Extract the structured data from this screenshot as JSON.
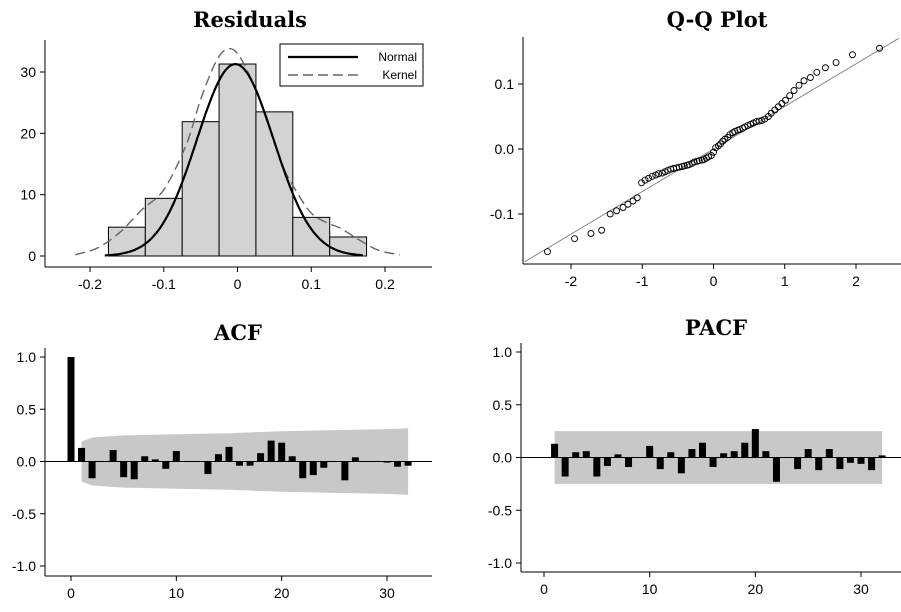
{
  "colors": {
    "bar_fill": "#d3d3d3",
    "bar_stroke": "#000000",
    "normal_line": "#000000",
    "kernel_line": "#666666",
    "conf_band": "#c8c8c8",
    "acf_bar": "#000000",
    "qq_point": "#000000",
    "qq_line": "#888888"
  },
  "chart_data": [
    {
      "id": "residuals",
      "type": "histogram",
      "title": "Residuals",
      "xlim": [
        -0.25,
        0.25
      ],
      "ylim": [
        -2,
        35
      ],
      "xticks": [
        -0.2,
        -0.1,
        0,
        0.1,
        0.2
      ],
      "xtick_labels": [
        "-0.2",
        "-0.1",
        "0",
        "0.1",
        "0.2"
      ],
      "yticks": [
        0,
        10,
        20,
        30
      ],
      "ytick_labels": [
        "0",
        "10",
        "20",
        "30"
      ],
      "bins": [
        {
          "from": -0.175,
          "to": -0.125,
          "value": 4.7
        },
        {
          "from": -0.125,
          "to": -0.075,
          "value": 9.4
        },
        {
          "from": -0.075,
          "to": -0.025,
          "value": 21.9
        },
        {
          "from": -0.025,
          "to": 0.025,
          "value": 31.3
        },
        {
          "from": 0.025,
          "to": 0.075,
          "value": 23.5
        },
        {
          "from": 0.075,
          "to": 0.125,
          "value": 6.3
        },
        {
          "from": 0.125,
          "to": 0.175,
          "value": 3.1
        }
      ],
      "normal": {
        "mean": -0.003,
        "sd": 0.0127,
        "peak": 31.3,
        "range": [
          -0.18,
          0.17
        ]
      },
      "kernel": {
        "x": [
          -0.22,
          -0.19,
          -0.16,
          -0.13,
          -0.1,
          -0.07,
          -0.05,
          -0.03,
          -0.015,
          0.0,
          0.02,
          0.04,
          0.06,
          0.08,
          0.1,
          0.12,
          0.14,
          0.16,
          0.19,
          0.22
        ],
        "y": [
          0.2,
          1.3,
          3.8,
          7.5,
          10.8,
          18.0,
          25.5,
          31.5,
          33.7,
          33.0,
          28.5,
          22.0,
          15.0,
          10.5,
          7.0,
          5.5,
          4.5,
          3.0,
          1.0,
          0.2
        ]
      },
      "legend": {
        "position": "top-right",
        "entries": [
          "Normal",
          "Kernel"
        ]
      }
    },
    {
      "id": "qqplot",
      "type": "scatter",
      "title": "Q-Q Plot",
      "xlim": [
        -2.7,
        2.6
      ],
      "ylim": [
        -0.17,
        0.17
      ],
      "xticks": [
        -2,
        -1,
        0,
        1,
        2
      ],
      "xtick_labels": [
        "-2",
        "-1",
        "0",
        "1",
        "2"
      ],
      "yticks": [
        -0.1,
        0,
        0.1
      ],
      "ytick_labels": [
        "-0.1",
        "0.0",
        "0.1"
      ],
      "reference_line": {
        "intercept": 0.0,
        "slope": 0.0655
      },
      "theoretical": [
        -2.33,
        -1.95,
        -1.72,
        -1.57,
        -1.45,
        -1.36,
        -1.27,
        -1.2,
        -1.13,
        -1.07,
        -1.01,
        -0.96,
        -0.91,
        -0.86,
        -0.81,
        -0.77,
        -0.72,
        -0.68,
        -0.64,
        -0.6,
        -0.56,
        -0.52,
        -0.48,
        -0.44,
        -0.41,
        -0.37,
        -0.34,
        -0.3,
        -0.27,
        -0.23,
        -0.2,
        -0.16,
        -0.13,
        -0.1,
        -0.07,
        -0.03,
        0.0,
        0.03,
        0.07,
        0.1,
        0.13,
        0.16,
        0.2,
        0.23,
        0.27,
        0.3,
        0.34,
        0.37,
        0.41,
        0.44,
        0.48,
        0.52,
        0.56,
        0.6,
        0.64,
        0.68,
        0.72,
        0.77,
        0.81,
        0.86,
        0.91,
        0.96,
        1.01,
        1.07,
        1.13,
        1.2,
        1.27,
        1.36,
        1.45,
        1.57,
        1.72,
        1.95,
        2.33
      ],
      "sample": [
        -0.158,
        -0.138,
        -0.13,
        -0.125,
        -0.1,
        -0.095,
        -0.09,
        -0.085,
        -0.08,
        -0.075,
        -0.052,
        -0.048,
        -0.045,
        -0.042,
        -0.04,
        -0.038,
        -0.037,
        -0.035,
        -0.033,
        -0.031,
        -0.03,
        -0.029,
        -0.028,
        -0.027,
        -0.026,
        -0.025,
        -0.024,
        -0.022,
        -0.02,
        -0.019,
        -0.018,
        -0.017,
        -0.016,
        -0.014,
        -0.012,
        -0.01,
        -0.005,
        0.002,
        0.005,
        0.008,
        0.012,
        0.015,
        0.018,
        0.022,
        0.025,
        0.027,
        0.029,
        0.03,
        0.032,
        0.034,
        0.036,
        0.038,
        0.04,
        0.042,
        0.043,
        0.044,
        0.046,
        0.05,
        0.055,
        0.06,
        0.065,
        0.07,
        0.075,
        0.082,
        0.09,
        0.098,
        0.105,
        0.11,
        0.118,
        0.125,
        0.133,
        0.145,
        0.155
      ]
    },
    {
      "id": "acf",
      "type": "bar",
      "title": "ACF",
      "xlim": [
        -2.5,
        34
      ],
      "ylim": [
        -1.1,
        1.1
      ],
      "xticks": [
        0,
        10,
        20,
        30
      ],
      "xtick_labels": [
        "0",
        "10",
        "20",
        "30"
      ],
      "yticks": [
        -1,
        -0.5,
        0,
        0.5,
        1
      ],
      "ytick_labels": [
        "-1.0",
        "-0.5",
        "0.0",
        "0.5",
        "1.0"
      ],
      "lags": [
        0,
        1,
        2,
        3,
        4,
        5,
        6,
        7,
        8,
        9,
        10,
        11,
        12,
        13,
        14,
        15,
        16,
        17,
        18,
        19,
        20,
        21,
        22,
        23,
        24,
        25,
        26,
        27,
        28,
        29,
        30,
        31,
        32
      ],
      "values": [
        1.0,
        0.13,
        -0.16,
        0.0,
        0.11,
        -0.15,
        -0.17,
        0.05,
        0.02,
        -0.07,
        0.1,
        0.0,
        0.0,
        -0.12,
        0.07,
        0.14,
        -0.04,
        -0.04,
        0.08,
        0.2,
        0.18,
        0.05,
        -0.16,
        -0.13,
        -0.06,
        0.0,
        -0.18,
        0.04,
        0.0,
        0.0,
        -0.01,
        -0.05,
        -0.04
      ],
      "band": {
        "lags": [
          1,
          2,
          5,
          10,
          15,
          20,
          25,
          30,
          32
        ],
        "upper": [
          0.19,
          0.23,
          0.25,
          0.26,
          0.27,
          0.29,
          0.3,
          0.31,
          0.32
        ],
        "lower": [
          -0.19,
          -0.23,
          -0.25,
          -0.26,
          -0.27,
          -0.29,
          -0.3,
          -0.31,
          -0.32
        ]
      }
    },
    {
      "id": "pacf",
      "type": "bar",
      "title": "PACF",
      "xlim": [
        -2.5,
        34
      ],
      "ylim": [
        -1.1,
        1.1
      ],
      "xticks": [
        0,
        10,
        20,
        30
      ],
      "xtick_labels": [
        "0",
        "10",
        "20",
        "30"
      ],
      "yticks": [
        -1,
        -0.5,
        0,
        0.5,
        1
      ],
      "ytick_labels": [
        "-1.0",
        "-0.5",
        "0.0",
        "0.5",
        "1.0"
      ],
      "lags": [
        1,
        2,
        3,
        4,
        5,
        6,
        7,
        8,
        9,
        10,
        11,
        12,
        13,
        14,
        15,
        16,
        17,
        18,
        19,
        20,
        21,
        22,
        23,
        24,
        25,
        26,
        27,
        28,
        29,
        30,
        31,
        32
      ],
      "values": [
        0.13,
        -0.18,
        0.05,
        0.06,
        -0.18,
        -0.08,
        0.03,
        -0.09,
        0.0,
        0.11,
        -0.11,
        0.05,
        -0.15,
        0.08,
        0.14,
        -0.09,
        0.04,
        0.06,
        0.14,
        0.27,
        0.06,
        -0.23,
        0.0,
        -0.11,
        0.08,
        -0.12,
        0.08,
        -0.11,
        -0.05,
        -0.06,
        -0.12,
        0.02
      ],
      "band": {
        "lags": [
          1,
          32
        ],
        "upper": [
          0.25,
          0.25
        ],
        "lower": [
          -0.25,
          -0.25
        ]
      }
    }
  ]
}
